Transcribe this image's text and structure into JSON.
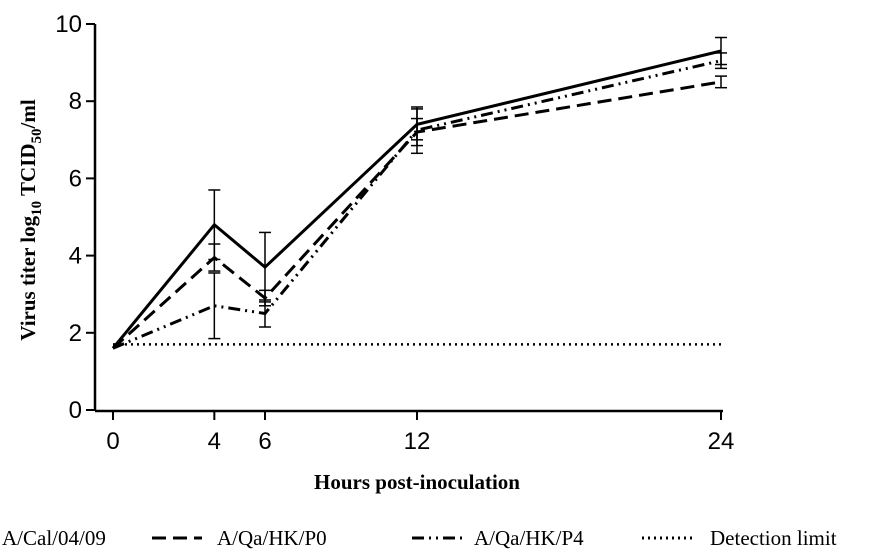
{
  "chart_data": {
    "type": "line",
    "xlabel": "Hours post-inoculation",
    "ylabel_parts": [
      "Virus titer log",
      "10",
      " TCID",
      "50",
      "/ml"
    ],
    "xlim": [
      0,
      24
    ],
    "ylim": [
      0,
      10
    ],
    "xticks": [
      0,
      4,
      6,
      12,
      24
    ],
    "yticks": [
      0,
      2,
      4,
      6,
      8,
      10
    ],
    "detection_limit": 1.7,
    "series": [
      {
        "name": "A/Cal/04/09",
        "style": "solid",
        "x": [
          0,
          4,
          6,
          12,
          24
        ],
        "y": [
          1.6,
          4.8,
          3.7,
          7.4,
          9.3
        ],
        "err": [
          0,
          0.9,
          0.9,
          0.4,
          0.35
        ]
      },
      {
        "name": "A/Qa/HK/P0",
        "style": "dashed",
        "x": [
          0,
          4,
          6,
          12,
          24
        ],
        "y": [
          1.6,
          3.95,
          2.9,
          7.2,
          8.5
        ],
        "err": [
          0,
          0.35,
          0.2,
          0.35,
          0.15
        ]
      },
      {
        "name": "A/Qa/HK/P4",
        "style": "dashdotdot",
        "x": [
          0,
          4,
          6,
          12,
          24
        ],
        "y": [
          1.6,
          2.7,
          2.5,
          7.25,
          9.05
        ],
        "err": [
          0,
          0.85,
          0.35,
          0.6,
          0.2
        ]
      },
      {
        "name": "Detection limit",
        "style": "dotted"
      }
    ]
  }
}
